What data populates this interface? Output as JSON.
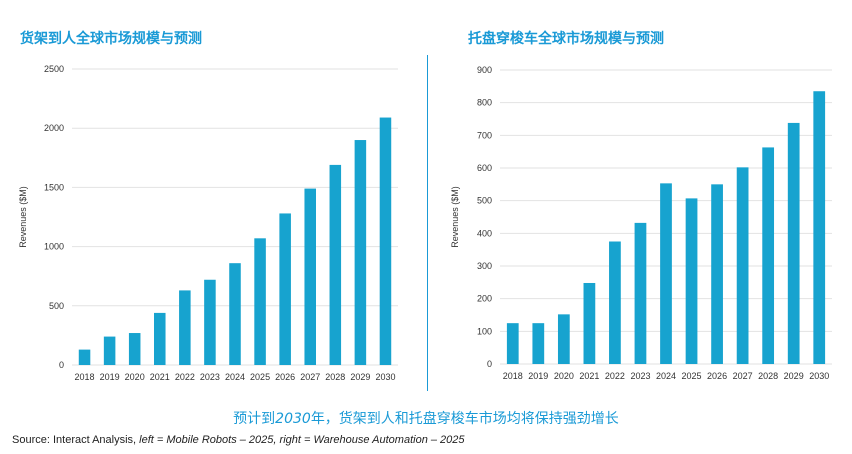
{
  "chart_data": [
    {
      "type": "bar",
      "title": "货架到人全球市场规模与预测",
      "ylabel": "Revenues ($M)",
      "xlabel": "",
      "categories": [
        "2018",
        "2019",
        "2020",
        "2021",
        "2022",
        "2023",
        "2024",
        "2025",
        "2026",
        "2027",
        "2028",
        "2029",
        "2030"
      ],
      "values": [
        130,
        240,
        270,
        440,
        630,
        720,
        860,
        1070,
        1280,
        1490,
        1690,
        1900,
        2090
      ],
      "ylim": [
        0,
        2500
      ],
      "yticks": [
        0,
        500,
        1000,
        1500,
        2000,
        2500
      ],
      "grid": true,
      "color": "#17a3cf"
    },
    {
      "type": "bar",
      "title": "托盘穿梭车全球市场规模与预测",
      "ylabel": "Revenues ($M)",
      "xlabel": "",
      "categories": [
        "2018",
        "2019",
        "2020",
        "2021",
        "2022",
        "2023",
        "2024",
        "2025",
        "2026",
        "2027",
        "2028",
        "2029",
        "2030"
      ],
      "values": [
        125,
        125,
        152,
        248,
        375,
        432,
        553,
        507,
        550,
        602,
        663,
        738,
        835
      ],
      "ylim": [
        0,
        900
      ],
      "yticks": [
        0,
        100,
        200,
        300,
        400,
        500,
        600,
        700,
        800,
        900
      ],
      "grid": true,
      "color": "#17a3cf"
    }
  ],
  "subtitle": {
    "prefix": "预计到",
    "year": "2030",
    "suffix": "年，货架到人和托盘穿梭车市场均将保持强劲增长"
  },
  "source": {
    "lead": "Source: Interact Analysis, ",
    "left": "left = Mobile Robots – 2025",
    "sep": ", ",
    "right": "right = Warehouse Automation – 2025"
  },
  "colors": {
    "accent": "#1a9ad6",
    "bar": "#17a3cf",
    "grid": "#e2e2e2"
  }
}
